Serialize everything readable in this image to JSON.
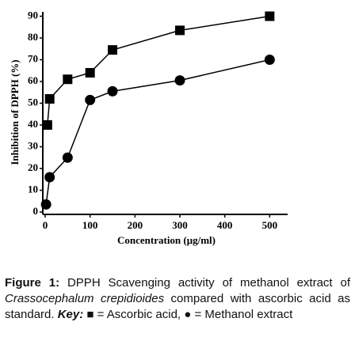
{
  "chart_data": {
    "type": "line",
    "xlabel": "Concentration (μg/ml)",
    "ylabel": "Inhibition of DPPH (%)",
    "xlim": [
      0,
      540
    ],
    "xticks": [
      0,
      100,
      200,
      300,
      400,
      500
    ],
    "ylim": [
      0,
      92
    ],
    "yticks": [
      0,
      10,
      20,
      30,
      40,
      50,
      60,
      70,
      80,
      90
    ],
    "series": [
      {
        "name": "Ascorbic acid",
        "marker": "square",
        "color": "#000000",
        "x": [
          5,
          10,
          50,
          100,
          150,
          300,
          500
        ],
        "values": [
          40,
          52,
          61,
          64,
          74.5,
          83.5,
          90
        ]
      },
      {
        "name": "Methanol extract",
        "marker": "circle",
        "color": "#000000",
        "x": [
          2,
          10,
          50,
          100,
          150,
          300,
          500
        ],
        "values": [
          3.5,
          16,
          25,
          51.5,
          55.5,
          60.5,
          70
        ]
      }
    ]
  },
  "caption": {
    "label": "Figure 1:",
    "text1": " DPPH Scavenging activity of methanol extract of ",
    "species": "Crassocephalum crepidioides",
    "text2": " compared with ascorbic acid as standard. ",
    "key": "Key:",
    "text3": " ■ = Ascorbic acid, ● = Methanol extract"
  }
}
